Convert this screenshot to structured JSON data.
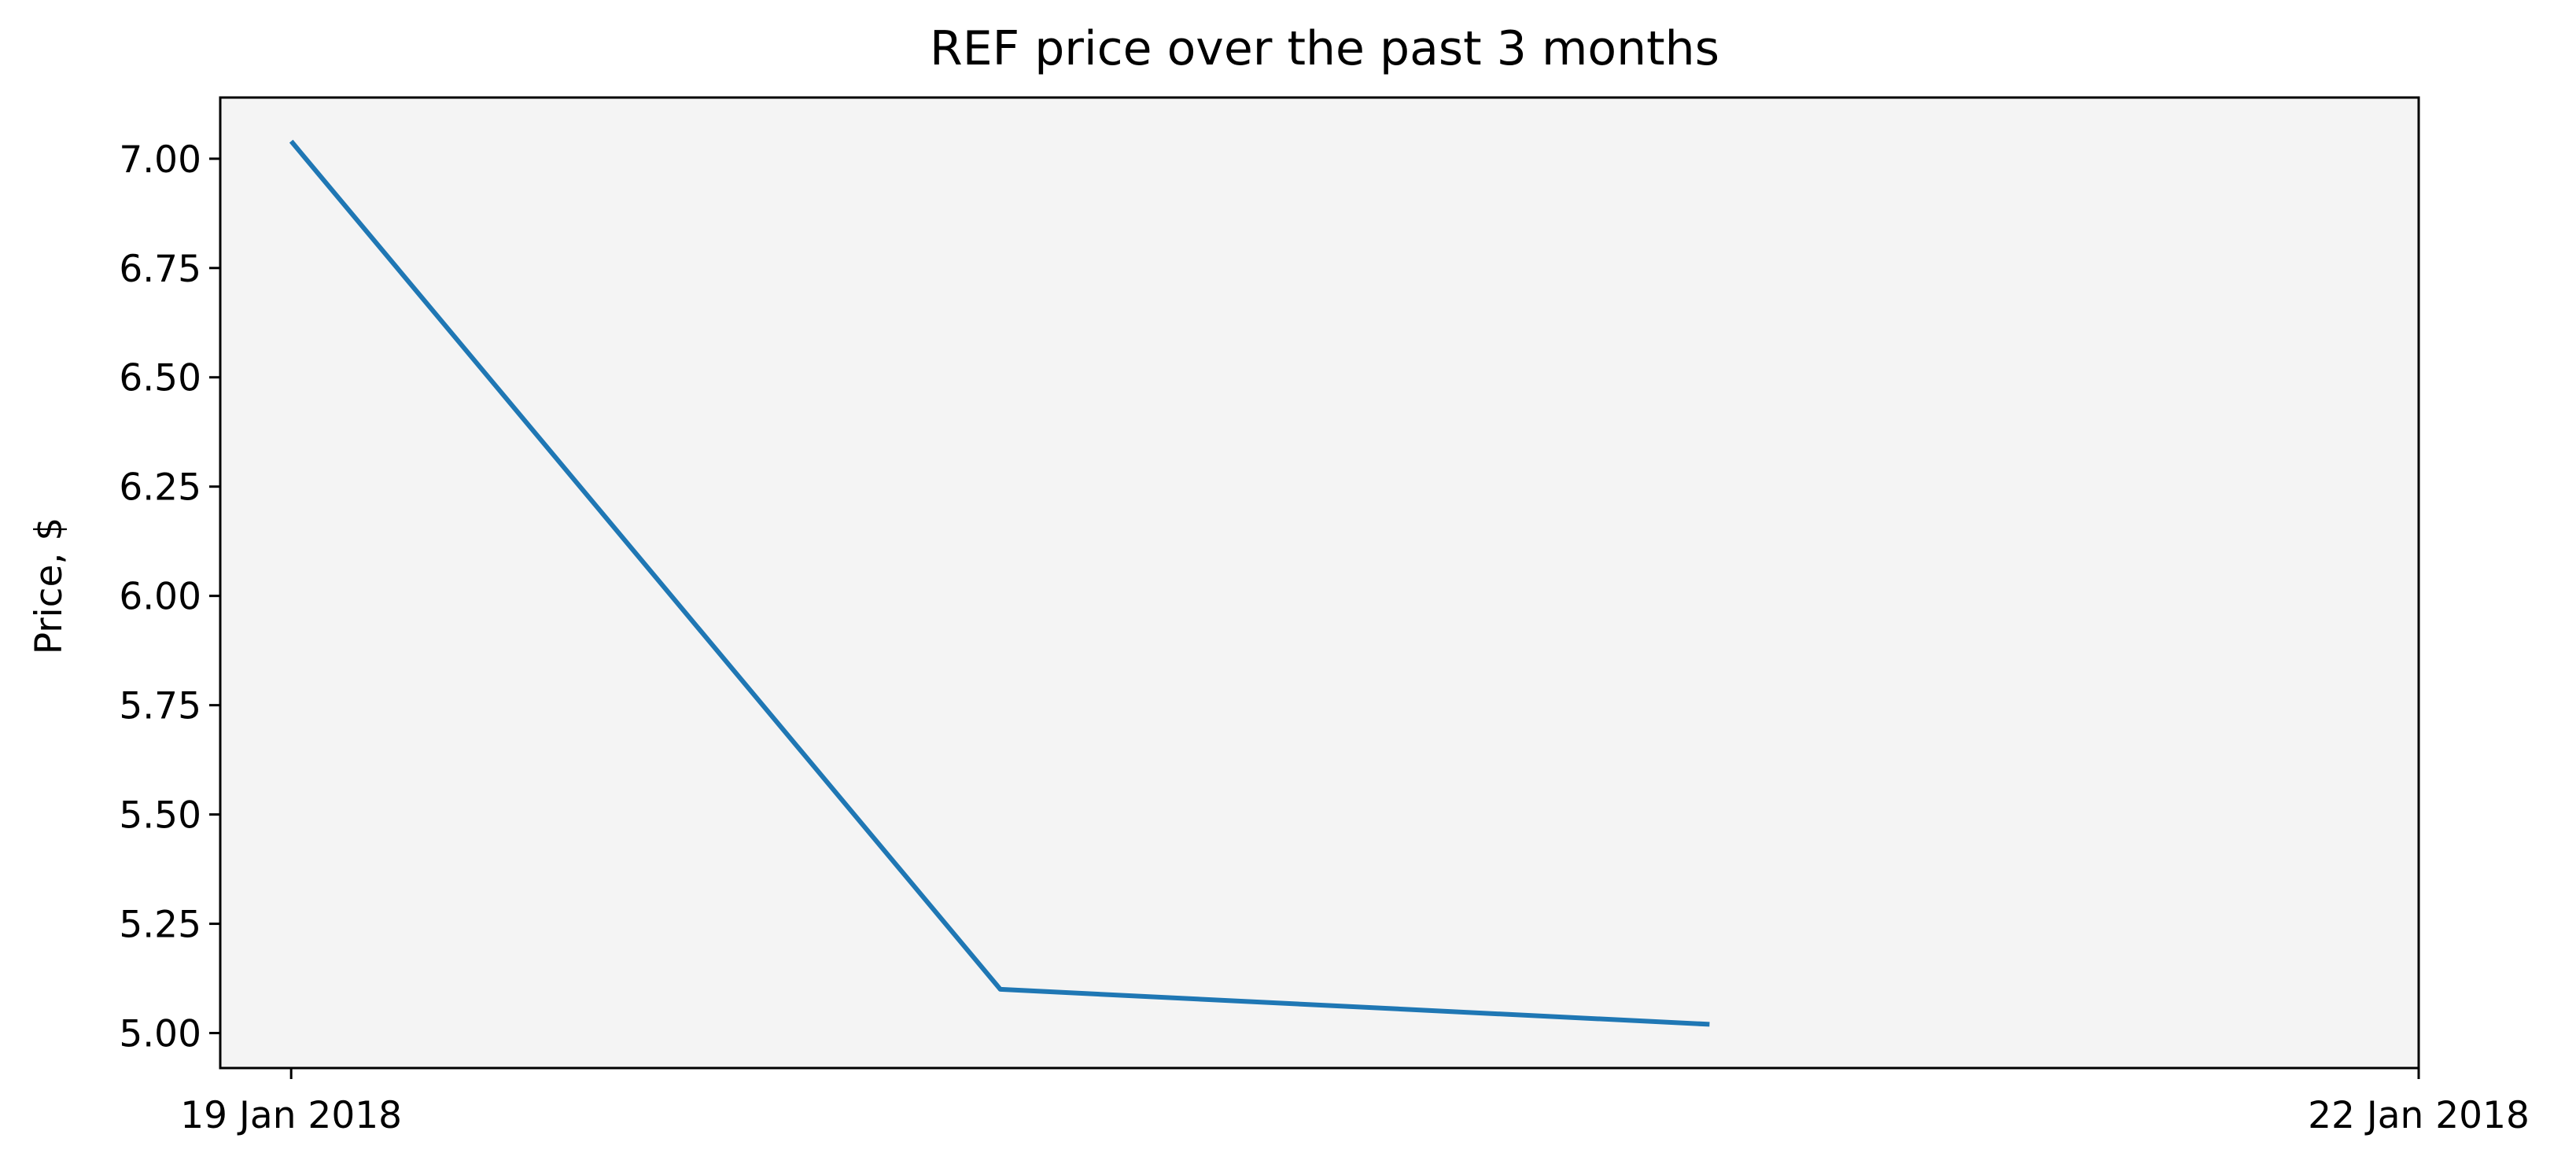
{
  "chart_data": {
    "type": "line",
    "title": "REF price over the past 3 months",
    "xlabel": "",
    "ylabel": "Price, $",
    "x": [
      "19 Jan 2018",
      "20 Jan 2018",
      "21 Jan 2018"
    ],
    "xlim": [
      "18 Jan 2018 21:36",
      "22 Jan 2018 00:00"
    ],
    "x_ticks": [
      "19 Jan 2018",
      "22 Jan 2018"
    ],
    "y_ticks": [
      "5.00",
      "5.25",
      "5.50",
      "5.75",
      "6.00",
      "6.25",
      "6.50",
      "6.75",
      "7.00"
    ],
    "ylim": [
      4.92,
      7.14
    ],
    "series": [
      {
        "values": [
          7.04,
          5.1,
          5.02
        ]
      }
    ],
    "grid": false,
    "legend": "none",
    "colors": {
      "line": "#1f77b4",
      "plot_background": "#f4f4f4",
      "axes": "#000000"
    }
  }
}
